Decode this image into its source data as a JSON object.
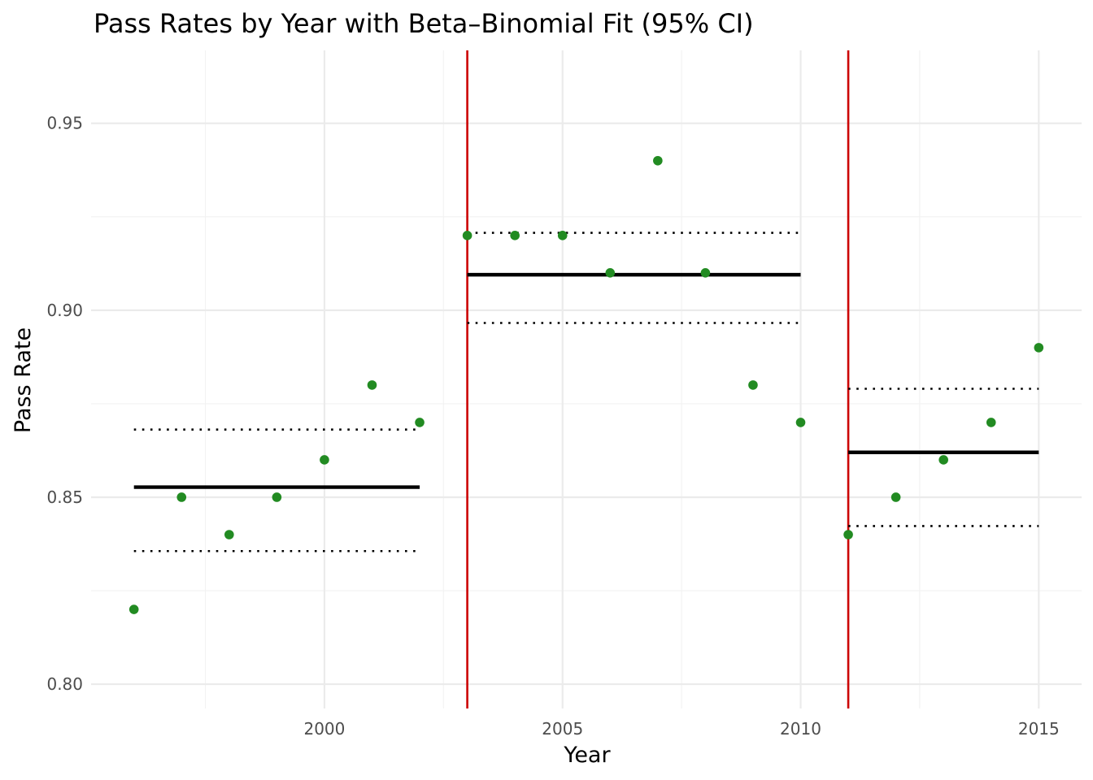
{
  "chart_data": {
    "type": "scatter",
    "title": "Pass Rates by Year with Beta–Binomial Fit (95% CI)",
    "xlabel": "Year",
    "ylabel": "Pass Rate",
    "xlim": [
      1995.1,
      2015.9
    ],
    "ylim": [
      0.7935,
      0.9695
    ],
    "x_major_ticks": [
      2000,
      2005,
      2010,
      2015
    ],
    "x_tick_labels": [
      "2000",
      "2005",
      "2010",
      "2015"
    ],
    "x_minor_ticks": [
      1997.5,
      2002.5,
      2007.5,
      2012.5
    ],
    "y_major_ticks": [
      0.8,
      0.85,
      0.9,
      0.95
    ],
    "y_tick_labels": [
      "0.80",
      "0.85",
      "0.90",
      "0.95"
    ],
    "y_minor_ticks": [
      0.825,
      0.875,
      0.925
    ],
    "grid": true,
    "colors": {
      "points": "#228b22",
      "breakpoints": "#cc0000",
      "fit": "#000000",
      "ci": "#000000"
    },
    "series": [
      {
        "x": [
          1996,
          1997,
          1998,
          1999,
          2000,
          2001,
          2002,
          2003,
          2004,
          2005,
          2006,
          2007,
          2008,
          2009,
          2010,
          2011,
          2012,
          2013,
          2014,
          2015
        ],
        "y": [
          0.82,
          0.85,
          0.84,
          0.85,
          0.86,
          0.88,
          0.87,
          0.92,
          0.92,
          0.92,
          0.91,
          0.94,
          0.91,
          0.88,
          0.87,
          0.84,
          0.85,
          0.86,
          0.87,
          0.89
        ]
      }
    ],
    "breakpoints": [
      2003,
      2011
    ],
    "segments": [
      {
        "x_start": 1996,
        "x_end": 2002,
        "mean": 0.8527,
        "ci_low": 0.8356,
        "ci_high": 0.8681
      },
      {
        "x_start": 2003,
        "x_end": 2010,
        "mean": 0.9095,
        "ci_low": 0.8966,
        "ci_high": 0.9207
      },
      {
        "x_start": 2011,
        "x_end": 2015,
        "mean": 0.862,
        "ci_low": 0.8423,
        "ci_high": 0.879
      }
    ]
  }
}
